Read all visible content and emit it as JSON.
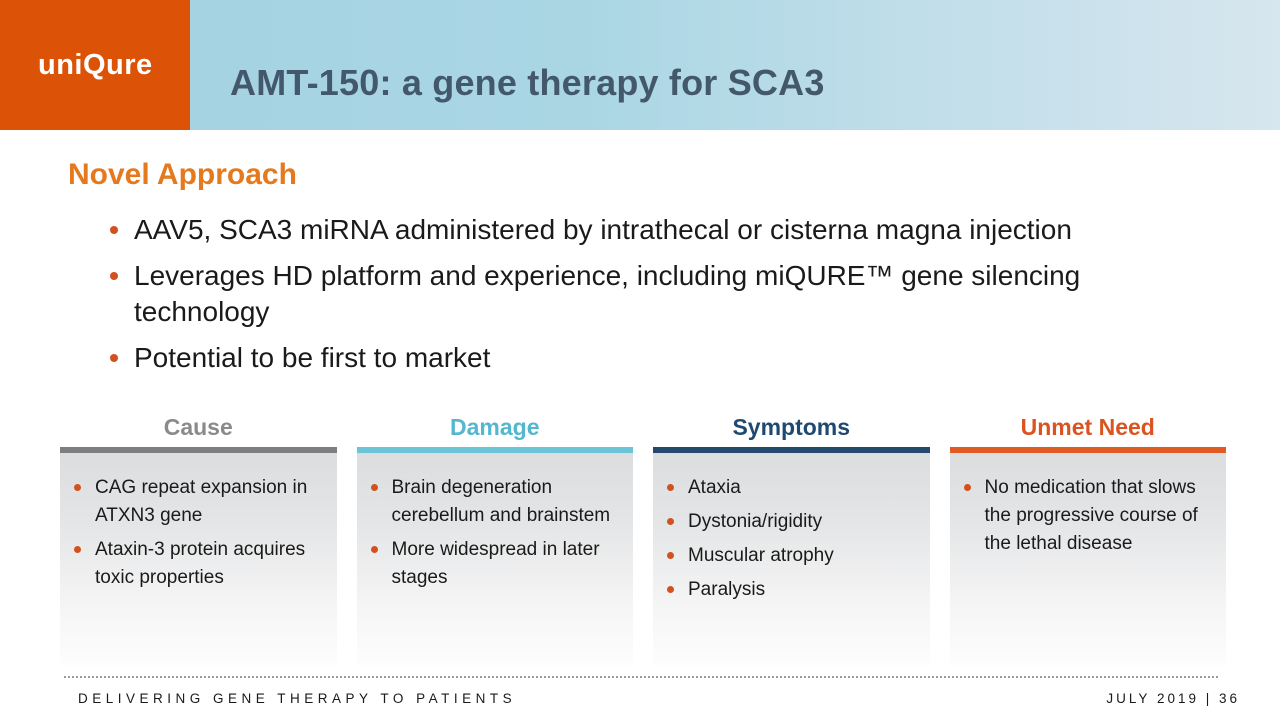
{
  "logo": {
    "text": "uniQure",
    "bg_color": "#dc5308"
  },
  "header": {
    "title": "AMT-150: a gene therapy for SCA3",
    "title_color": "#44586b",
    "band_color_left": "#a3d1e1",
    "band_color_right": "#d7e6ef"
  },
  "section": {
    "heading": "Novel Approach",
    "heading_color": "#e5791e",
    "bullet_color": "#d2511f",
    "bullets": [
      "AAV5, SCA3 miRNA administered by intrathecal or cisterna magna injection",
      "Leverages HD platform and experience, including miQURE™ gene silencing technology",
      "Potential to be first to market"
    ]
  },
  "columns": [
    {
      "title": "Cause",
      "title_color": "#8a8a8a",
      "bar_color": "#7e7e7e",
      "items": [
        "CAG repeat expansion in ATXN3 gene",
        "Ataxin-3 protein acquires toxic properties"
      ]
    },
    {
      "title": "Damage",
      "title_color": "#53b7cf",
      "bar_color": "#6bc4d8",
      "items": [
        "Brain degeneration cerebellum and brainstem",
        "More widespread in later stages"
      ]
    },
    {
      "title": "Symptoms",
      "title_color": "#1f4971",
      "bar_color": "#24486e",
      "items": [
        "Ataxia",
        "Dystonia/rigidity",
        "Muscular atrophy",
        "Paralysis"
      ]
    },
    {
      "title": "Unmet Need",
      "title_color": "#db5320",
      "bar_color": "#e05a24",
      "items": [
        "No medication that slows the progressive course of the lethal disease"
      ]
    }
  ],
  "footer": {
    "left": "DELIVERING GENE THERAPY TO PATIENTS",
    "right": "JULY 2019 | 36"
  }
}
